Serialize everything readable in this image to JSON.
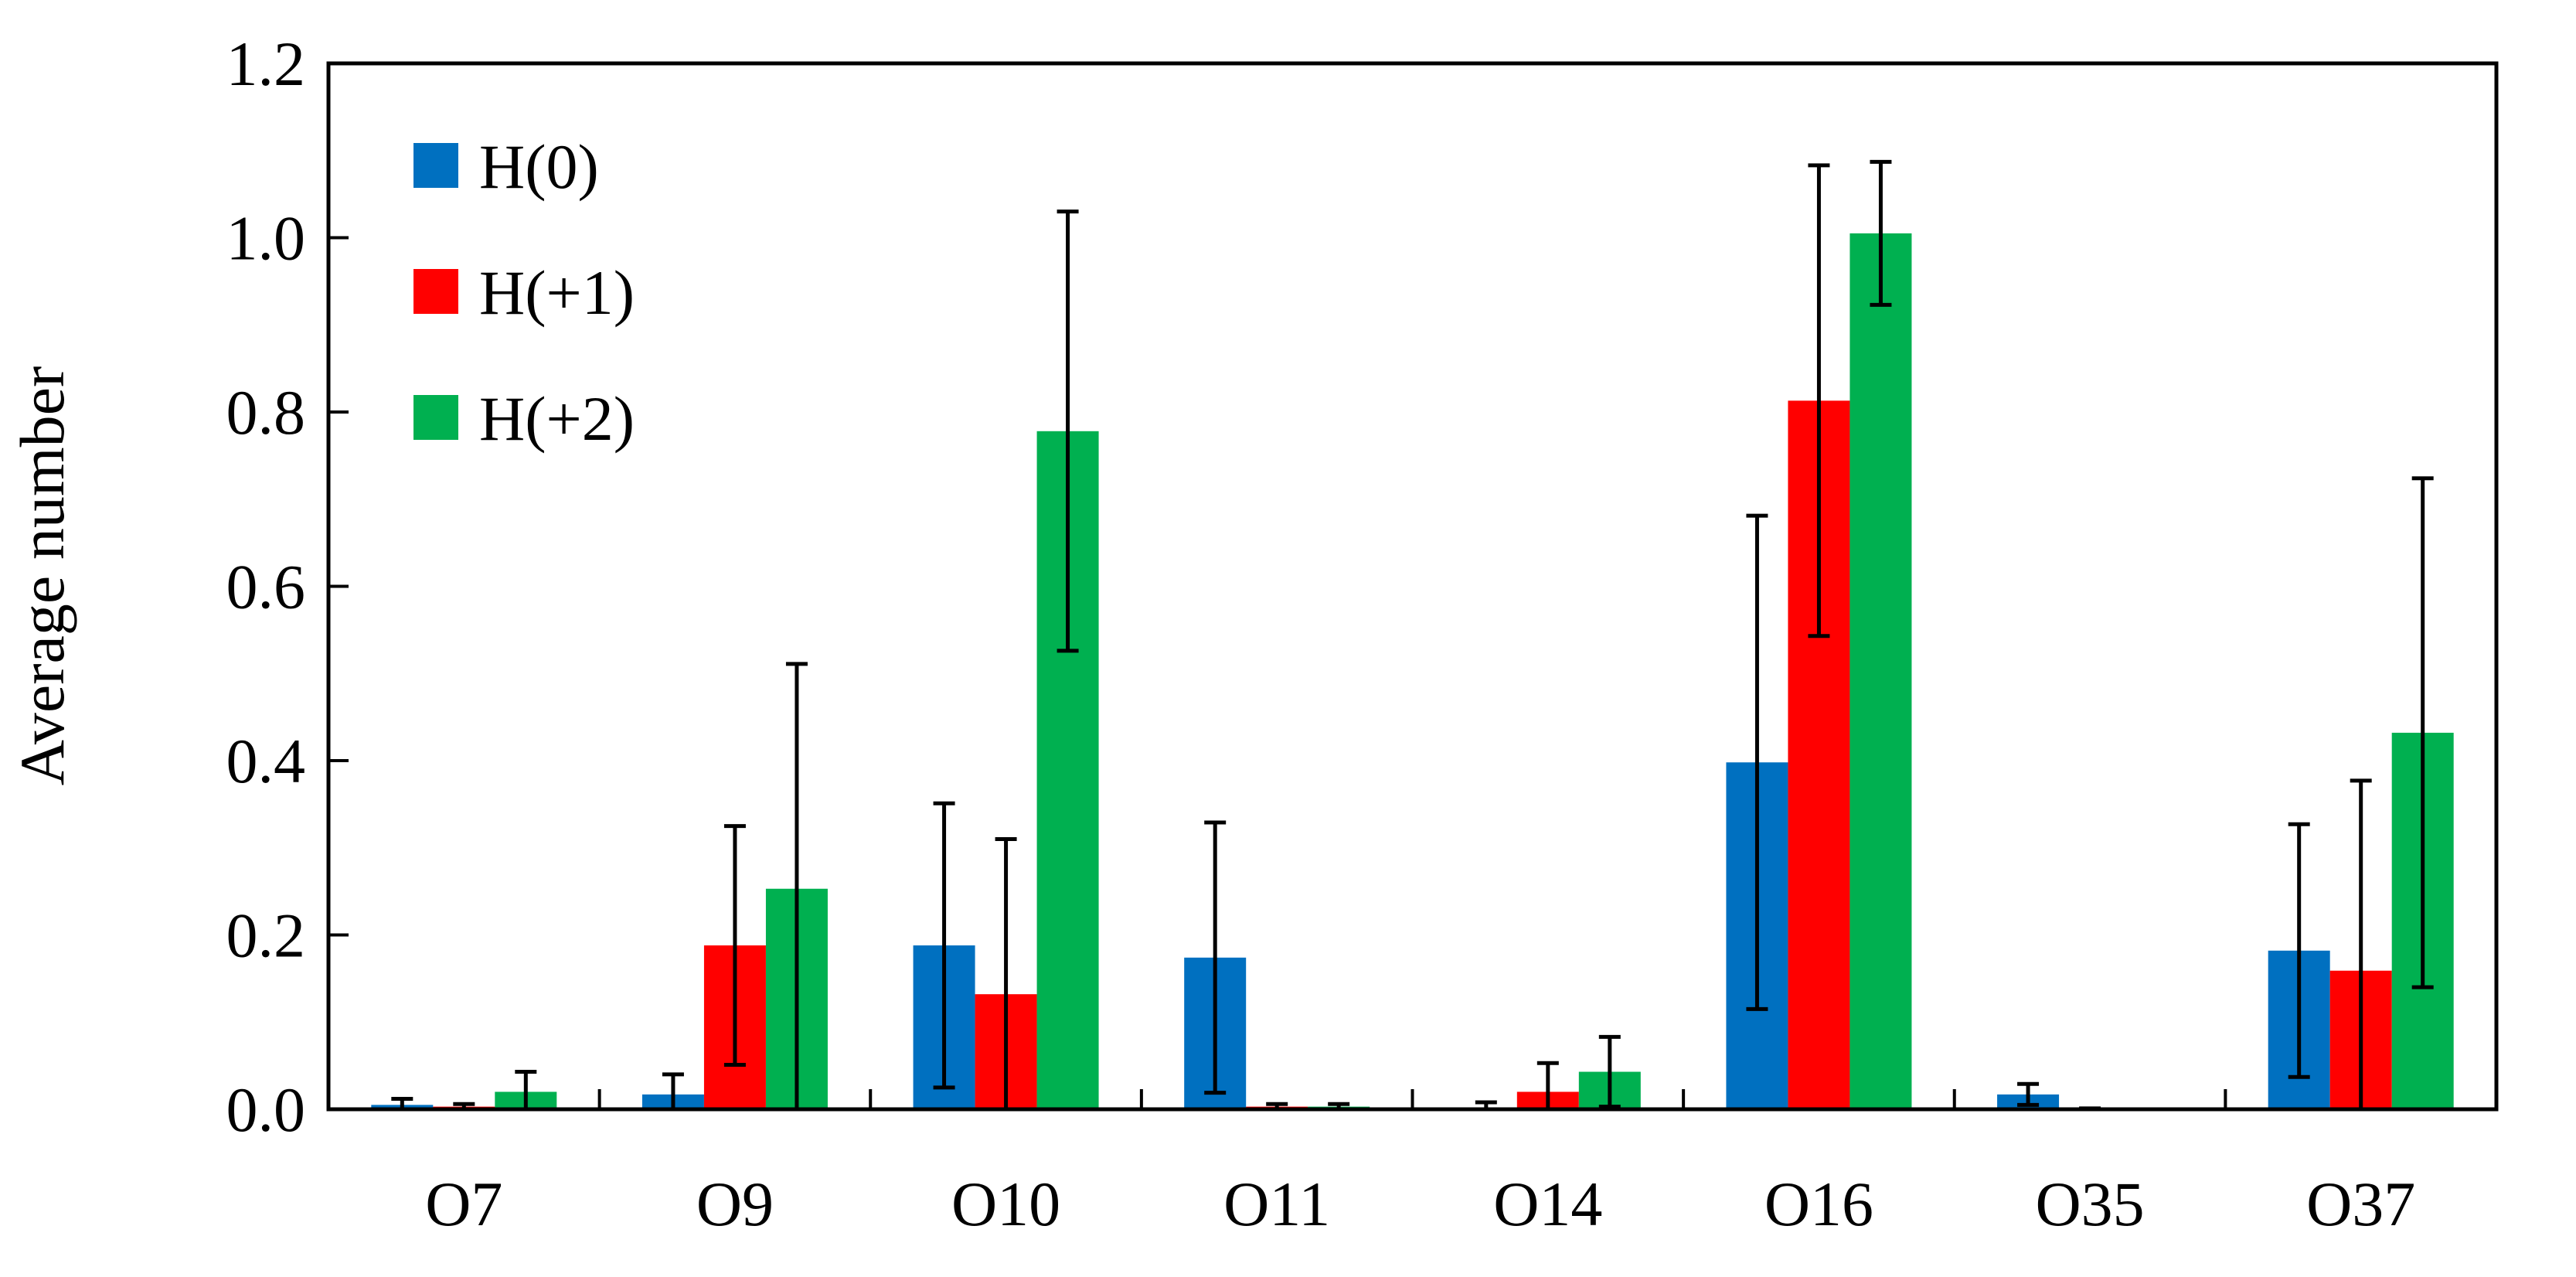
{
  "chart_data": {
    "type": "bar",
    "ylabel": "Average number",
    "xlabel": "",
    "ylim": [
      0,
      1.2
    ],
    "y_ticks": [
      "0.0",
      "0.2",
      "0.4",
      "0.6",
      "0.8",
      "1.0",
      "1.2"
    ],
    "y_tick_values": [
      0,
      0.2,
      0.4,
      0.6,
      0.8,
      1.0,
      1.2
    ],
    "categories": [
      "O7",
      "O9",
      "O10",
      "O11",
      "O14",
      "O16",
      "O35",
      "O37"
    ],
    "legend_position": "top-left",
    "grid": false,
    "series": [
      {
        "name": "H(0)",
        "color": "#0070C0",
        "values": [
          0.005,
          0.017,
          0.188,
          0.174,
          0.0,
          0.398,
          0.017,
          0.182
        ],
        "errors": [
          0.007,
          0.023,
          0.163,
          0.155,
          0.008,
          0.283,
          0.012,
          0.145
        ]
      },
      {
        "name": "H(+1)",
        "color": "#FF0000",
        "values": [
          0.003,
          0.188,
          0.132,
          0.003,
          0.02,
          0.813,
          0.0,
          0.159
        ],
        "errors": [
          0.003,
          0.137,
          0.178,
          0.003,
          0.033,
          0.27,
          0.001,
          0.218
        ]
      },
      {
        "name": "H(+2)",
        "color": "#00B050",
        "values": [
          0.02,
          0.253,
          0.778,
          0.003,
          0.043,
          1.005,
          0.0,
          0.432
        ],
        "errors": [
          0.023,
          0.258,
          0.252,
          0.003,
          0.04,
          0.082,
          0.0,
          0.292
        ]
      }
    ]
  }
}
